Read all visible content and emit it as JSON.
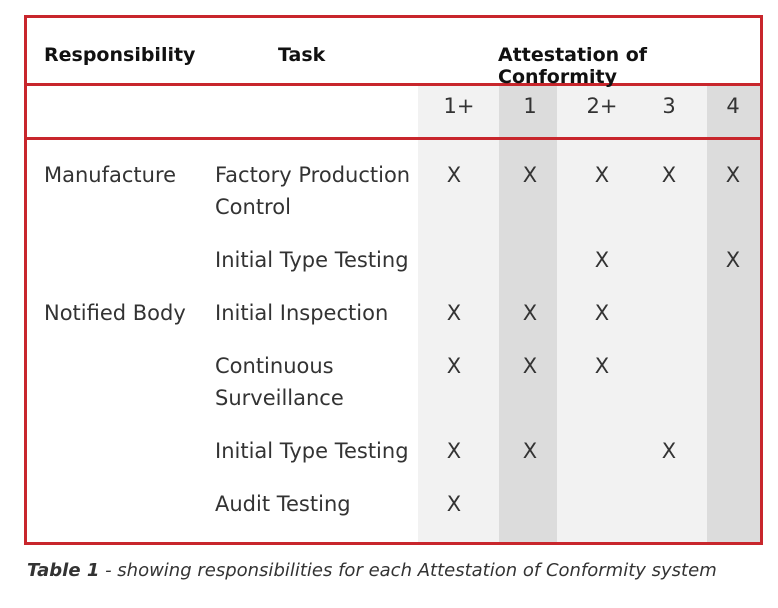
{
  "header": {
    "responsibility": "Responsibility",
    "task": "Task",
    "attestation": "Attestation of Conformity"
  },
  "systems": [
    "1+",
    "1",
    "2+",
    "3",
    "4"
  ],
  "rows": [
    {
      "responsibility": "Manufacture",
      "task": "Factory Production Control",
      "marks": [
        "X",
        "X",
        "X",
        "X",
        "X"
      ]
    },
    {
      "responsibility": "",
      "task": "Initial Type Testing",
      "marks": [
        "",
        "",
        "X",
        "",
        "X"
      ]
    },
    {
      "responsibility": "Notified Body",
      "task": "Initial Inspection",
      "marks": [
        "X",
        "X",
        "X",
        "",
        ""
      ]
    },
    {
      "responsibility": "",
      "task": "Continuous Surveillance",
      "marks": [
        "X",
        "X",
        "X",
        "",
        ""
      ]
    },
    {
      "responsibility": "",
      "task": "Initial Type Testing",
      "marks": [
        "X",
        "X",
        "",
        "X",
        ""
      ]
    },
    {
      "responsibility": "",
      "task": "Audit Testing",
      "marks": [
        "X",
        "",
        "",
        "",
        ""
      ]
    }
  ],
  "caption": {
    "label": "Table 1",
    "text": " - showing responsibilities for each Attestation of Conformity system"
  },
  "colors": {
    "border": "#c8262c",
    "shade_light": "#f2f2f2",
    "shade_dark": "#dcdcdc"
  }
}
